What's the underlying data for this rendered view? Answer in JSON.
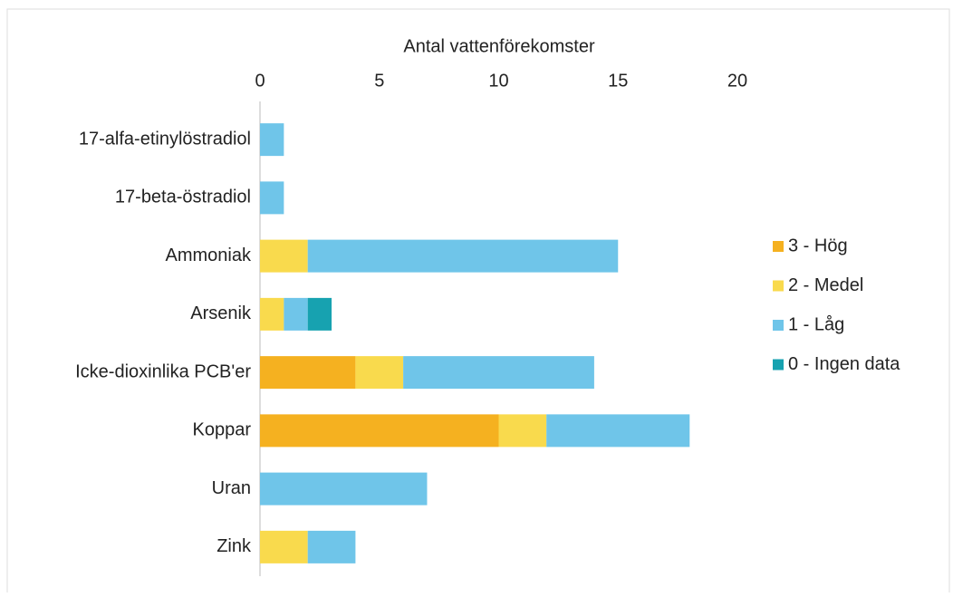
{
  "chart_data": {
    "type": "stacked_barh",
    "title": "Antal vattenförekomster",
    "categories": [
      "17-alfa-etinylöstradiol",
      "17-beta-östradiol",
      "Ammoniak",
      "Arsenik",
      "Icke-dioxinlika PCB'er",
      "Koppar",
      "Uran",
      "Zink"
    ],
    "series": [
      {
        "name": "3 - Hög",
        "color": "#f5b120",
        "values": [
          0,
          0,
          0,
          0,
          4,
          10,
          0,
          0
        ]
      },
      {
        "name": "2 - Medel",
        "color": "#f9da4d",
        "values": [
          0,
          0,
          2,
          1,
          2,
          2,
          0,
          2
        ]
      },
      {
        "name": "1 - Låg",
        "color": "#6fc5e9",
        "values": [
          1,
          1,
          13,
          1,
          8,
          6,
          7,
          2
        ]
      },
      {
        "name": "0 - Ingen data",
        "color": "#17a2b0",
        "values": [
          0,
          0,
          0,
          1,
          0,
          0,
          0,
          0
        ]
      }
    ],
    "xlim": [
      0,
      20
    ],
    "xticks": [
      0,
      5,
      10,
      15,
      20
    ],
    "legend": "right"
  }
}
